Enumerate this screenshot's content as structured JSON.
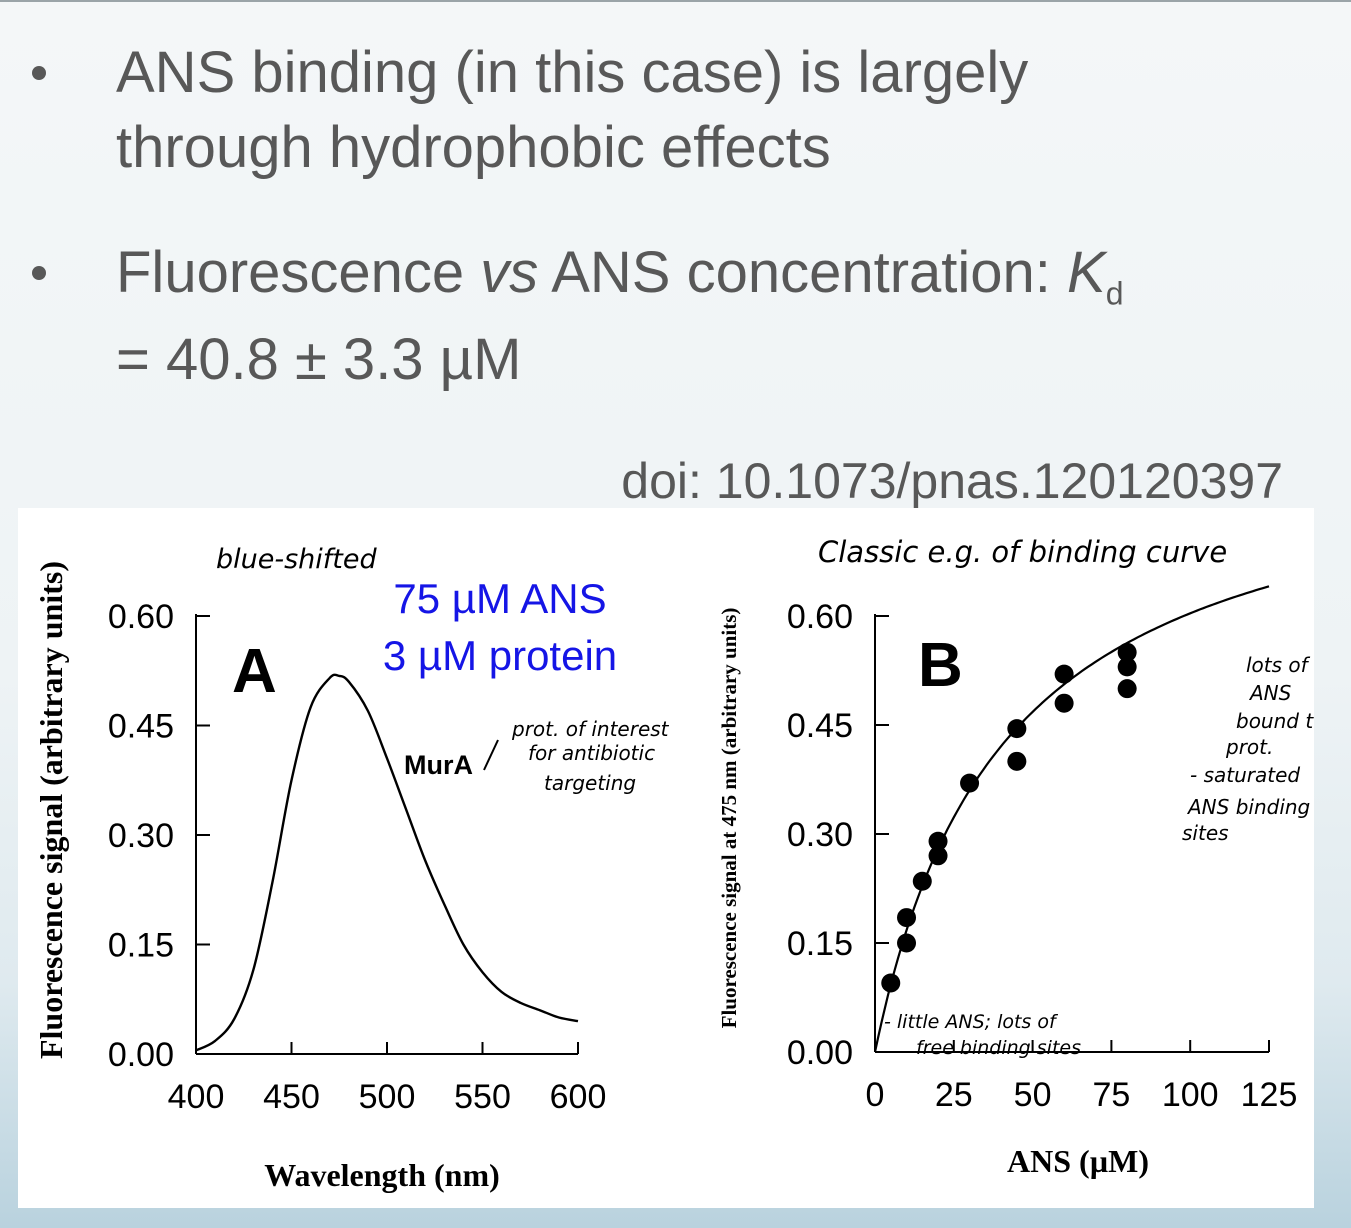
{
  "slide": {
    "bullets": [
      {
        "lines": [
          "ANS binding (in this case) is largely",
          "through hydrophobic effects"
        ]
      },
      {
        "line1_pre": "Fluorescence ",
        "line1_vs": "vs",
        "line1_mid": " ANS concentration: ",
        "line1_k": "K",
        "line1_sub": "d",
        "line2": "= 40.8 ± 3.3 µM"
      }
    ],
    "doi": "doi: 10.1073/pnas.120120397"
  },
  "colors": {
    "text_gray": "#585858",
    "annotation_blue": "#1515e6",
    "ink": "#000000"
  },
  "chart_data": [
    {
      "type": "line",
      "panel": "A",
      "xlabel": "Wavelength (nm)",
      "ylabel": "Fluorescence signal (arbitrary units)",
      "xlim": [
        400,
        600
      ],
      "ylim": [
        0,
        0.6
      ],
      "xticks": [
        "400",
        "450",
        "500",
        "550",
        "600"
      ],
      "yticks": [
        "0.00",
        "0.15",
        "0.30",
        "0.45",
        "0.60"
      ],
      "series": [
        {
          "name": "MurA",
          "x": [
            400,
            410,
            420,
            430,
            440,
            450,
            460,
            470,
            475,
            480,
            490,
            500,
            510,
            520,
            530,
            540,
            550,
            560,
            570,
            580,
            590,
            600
          ],
          "y": [
            0.005,
            0.018,
            0.048,
            0.115,
            0.235,
            0.375,
            0.475,
            0.515,
            0.518,
            0.51,
            0.47,
            0.405,
            0.335,
            0.265,
            0.205,
            0.15,
            0.112,
            0.085,
            0.07,
            0.06,
            0.05,
            0.045
          ]
        }
      ],
      "annotations": {
        "blue_line1": "75 µM ANS",
        "blue_line2": "3 µM protein",
        "hand_top": "blue-shifted",
        "hand_side": [
          "prot. of interest",
          "for antibiotic",
          "targeting"
        ]
      }
    },
    {
      "type": "scatter",
      "panel": "B",
      "xlabel": "ANS (µM)",
      "ylabel": "Fluorescence signal at 475 nm (arbitrary units)",
      "xlim": [
        0,
        125
      ],
      "ylim": [
        0,
        0.6
      ],
      "xticks": [
        "0",
        "25",
        "50",
        "75",
        "100",
        "125"
      ],
      "yticks": [
        "0.00",
        "0.15",
        "0.30",
        "0.45",
        "0.60"
      ],
      "points": {
        "x": [
          5,
          10,
          10,
          15,
          20,
          20,
          30,
          45,
          45,
          60,
          60,
          80,
          80,
          80
        ],
        "y": [
          0.095,
          0.15,
          0.185,
          0.235,
          0.27,
          0.29,
          0.37,
          0.4,
          0.445,
          0.48,
          0.52,
          0.5,
          0.53,
          0.55
        ]
      },
      "fit": {
        "model": "Bmax*x/(Kd+x)",
        "Bmax": 0.85,
        "Kd": 40.8
      },
      "annotations": {
        "hand_top": "Classic e.g. of binding curve",
        "hand_right": [
          "lots of",
          "ANS",
          "bound to",
          "prot.",
          "- saturated",
          "ANS binding",
          "sites"
        ],
        "hand_bottom": [
          "- little ANS; lots of",
          "free binding sites"
        ]
      }
    }
  ]
}
